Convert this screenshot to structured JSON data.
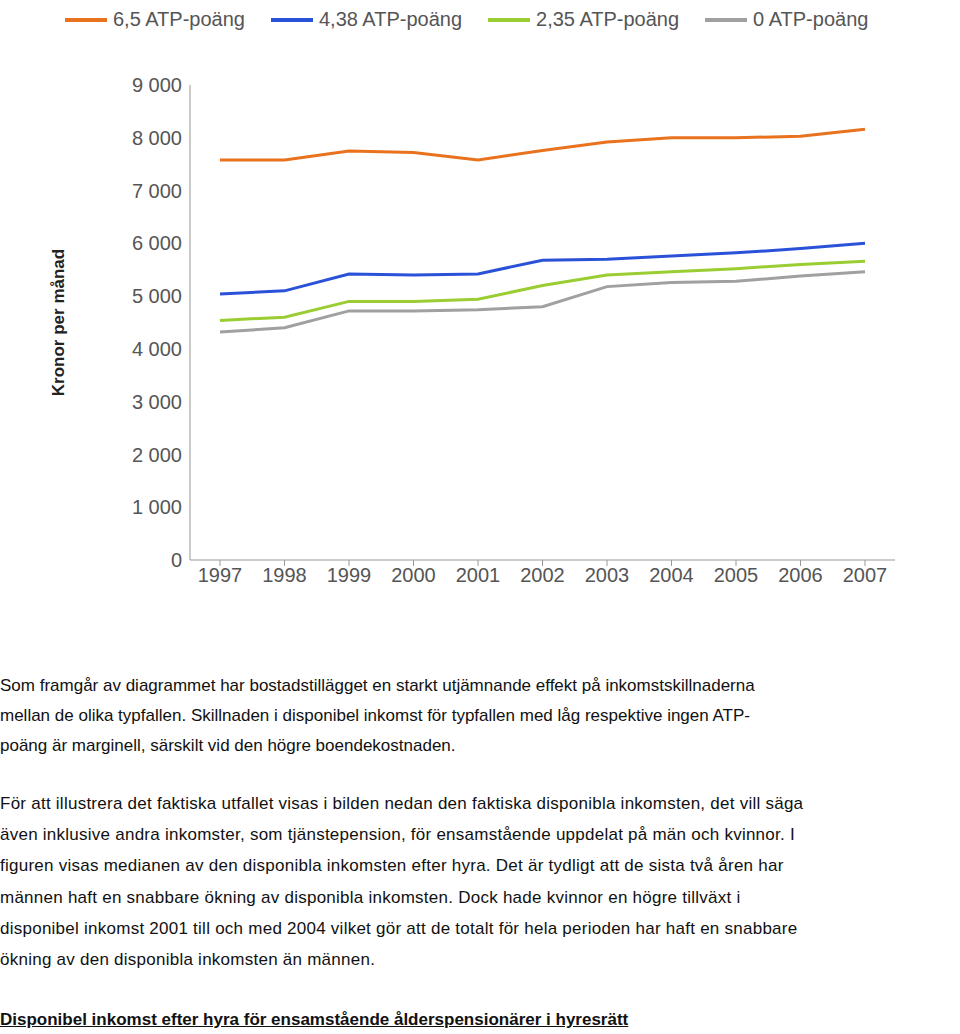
{
  "chart_data": {
    "type": "line",
    "y_label": "Kronor per månad",
    "categories": [
      "1997",
      "1998",
      "1999",
      "2000",
      "2001",
      "2002",
      "2003",
      "2004",
      "2005",
      "2006",
      "2007"
    ],
    "series": [
      {
        "name": "6,5 ATP-poäng",
        "color": "#e8721e",
        "values": [
          7580,
          7580,
          7750,
          7720,
          7580,
          7760,
          7920,
          8000,
          8000,
          8030,
          8160
        ]
      },
      {
        "name": "4,38 ATP-poäng",
        "color": "#2a52d8",
        "values": [
          5040,
          5100,
          5420,
          5400,
          5420,
          5680,
          5700,
          5760,
          5820,
          5900,
          6000
        ]
      },
      {
        "name": "2,35 ATP-poäng",
        "color": "#9acd32",
        "values": [
          4540,
          4600,
          4900,
          4900,
          4940,
          5200,
          5400,
          5460,
          5520,
          5600,
          5660
        ]
      },
      {
        "name": "0 ATP-poäng",
        "color": "#a0a0a0",
        "values": [
          4320,
          4400,
          4720,
          4720,
          4740,
          4800,
          5180,
          5260,
          5280,
          5380,
          5460
        ]
      }
    ],
    "ylim": [
      0,
      9000
    ],
    "yticks": [
      0,
      {
        "value": 1000,
        "label": "1 000"
      },
      {
        "value": 2000,
        "label": "2 000"
      },
      {
        "value": 3000,
        "label": "3 000"
      },
      {
        "value": 4000,
        "label": "4 000"
      },
      {
        "value": 5000,
        "label": "5 000"
      },
      {
        "value": 6000,
        "label": "6 000"
      },
      {
        "value": 7000,
        "label": "7 000"
      },
      {
        "value": 8000,
        "label": "8 000"
      },
      {
        "value": 9000,
        "label": "9 000"
      }
    ],
    "grid": false,
    "legend": "top"
  },
  "text": {
    "paragraphs": [
      [
        "Som framgår av diagrammet har bostadstillägget en starkt utjämnande effekt på inkomstskillnaderna",
        "mellan de olika typfallen. Skillnaden i disponibel inkomst för typfallen med låg respektive ingen ATP-",
        "poäng är marginell, särskilt vid den högre boendekostnaden."
      ],
      [
        "För att illustrera det faktiska utfallet visas i bilden nedan den faktiska disponibla inkomsten, det vill säga",
        "även inklusive andra inkomster, som tjänstepension, för ensamstående uppdelat på män och kvinnor. I",
        "figuren visas medianen av den disponibla inkomsten efter hyra. Det är tydligt att de sista två åren har",
        "männen haft en snabbare ökning av disponibla inkomsten. Dock hade kvinnor en högre tillväxt i",
        "disponibel inkomst 2001 till och med 2004 vilket gör att de totalt för hela perioden har haft en snabbare",
        "ökning av den disponibla inkomsten än männen."
      ]
    ],
    "heading": "Disponibel inkomst efter hyra för ensamstående ålderspensionärer i hyresrätt"
  }
}
